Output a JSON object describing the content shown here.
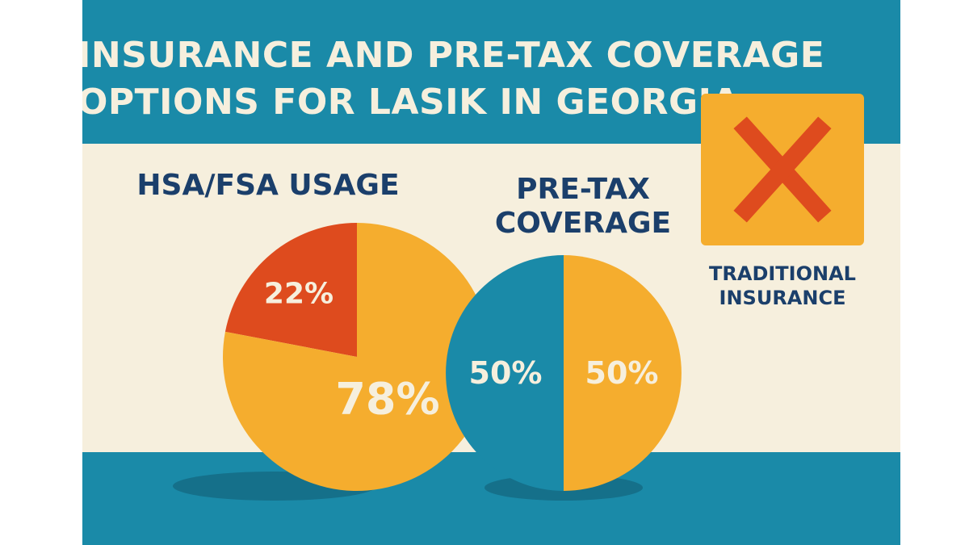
{
  "title": {
    "line1": "INSURANCE AND PRE-TAX COVERAGE",
    "line2": "OPTIONS FOR LASIK IN GEORGIA"
  },
  "colors": {
    "teal": "#1a8aa8",
    "cream": "#f6efdd",
    "orange": "#f5ad2e",
    "red": "#de4b1e",
    "navy": "#1b3f6b"
  },
  "icons": {
    "traditional_insurance": "x-mark-icon"
  },
  "traditional_insurance": {
    "line1": "TRADITIONAL",
    "line2": "INSURANCE"
  },
  "chart_data": [
    {
      "type": "pie",
      "title": "HSA/FSA USAGE",
      "slices": [
        {
          "value": 22,
          "label": "22%",
          "color": "#de4b1e"
        },
        {
          "value": 78,
          "label": "78%",
          "color": "#f5ad2e"
        }
      ]
    },
    {
      "type": "pie",
      "title_lines": [
        "PRE-TAX",
        "COVERAGE"
      ],
      "slices": [
        {
          "value": 50,
          "label": "50%",
          "color": "#f5ad2e"
        },
        {
          "value": 50,
          "label": "50%",
          "color": "#1a8aa8"
        }
      ]
    }
  ]
}
